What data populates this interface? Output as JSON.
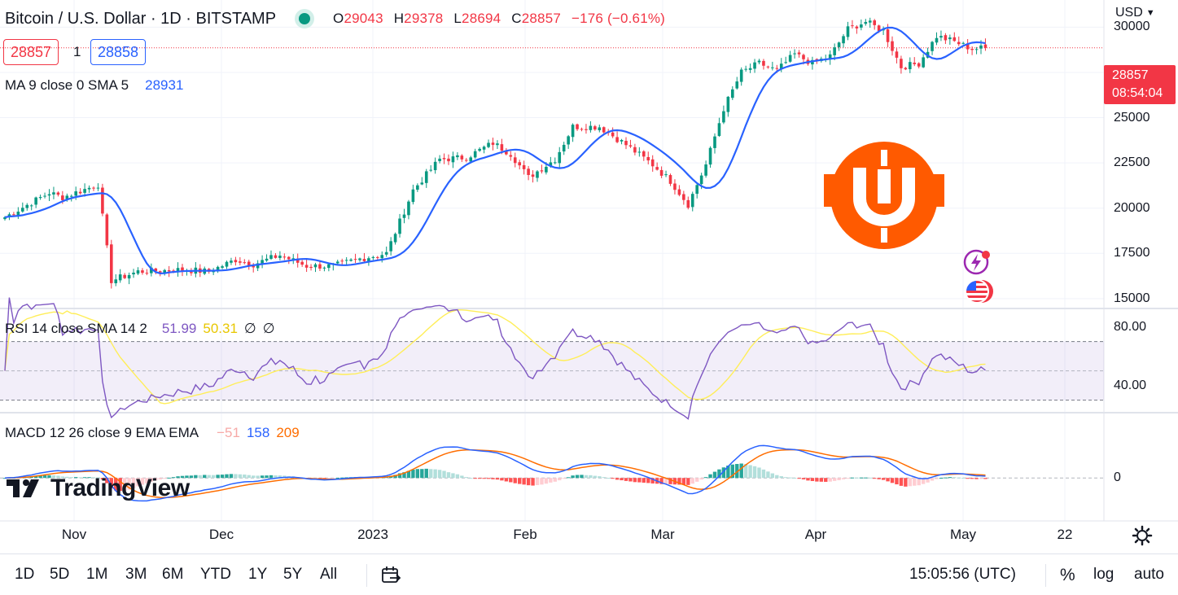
{
  "header": {
    "symbol_title": "Bitcoin / U.S. Dollar · 1D · BITSTAMP",
    "ohlc": {
      "o_label": "O",
      "o_value": "29043",
      "h_label": "H",
      "h_value": "29378",
      "l_label": "L",
      "l_value": "28694",
      "c_label": "C",
      "c_value": "28857",
      "change": "−176 (−0.61%)"
    },
    "sell_price": "28857",
    "spread": "1",
    "buy_price": "28858",
    "currency_selector": "USD"
  },
  "legends": {
    "ma": {
      "label": "MA 9 close 0 SMA 5",
      "value": "28931"
    },
    "rsi": {
      "label": "RSI 14 close SMA 14 2",
      "value1": "51.99",
      "value2": "50.31",
      "value3": "∅",
      "value4": "∅"
    },
    "macd": {
      "label": "MACD 12 26 close 9 EMA EMA",
      "hist": "−51",
      "macd": "158",
      "signal": "209"
    }
  },
  "last_price_tag": {
    "price": "28857",
    "countdown": "08:54:04"
  },
  "watermark": "TradingView",
  "price_axis": [
    "30000",
    "25000",
    "22500",
    "20000",
    "17500",
    "15000"
  ],
  "rsi_axis": [
    "80.00",
    "40.00"
  ],
  "macd_axis": [
    "0"
  ],
  "time_axis": [
    "Nov",
    "Dec",
    "2023",
    "Feb",
    "Mar",
    "Apr",
    "May",
    "22"
  ],
  "toolbar": {
    "ranges": [
      "1D",
      "5D",
      "1M",
      "3M",
      "6M",
      "YTD",
      "1Y",
      "5Y",
      "All"
    ],
    "clock": "15:05:56 (UTC)",
    "percent": "%",
    "log": "log",
    "auto": "auto"
  },
  "colors": {
    "up": "#089981",
    "down": "#f23645",
    "ma": "#2962ff",
    "rsi": "#7e57c2",
    "rsi_sma": "#ffee58",
    "macd": "#2962ff",
    "signal": "#ff6d00",
    "logo_orange": "#ff5a00"
  },
  "icons": [
    "lightning-event-icon",
    "us-flag-icon",
    "settings-gear-icon",
    "date-range-icon"
  ],
  "chart_data": {
    "type": "candlestick",
    "price_ylim": [
      14500,
      31500
    ],
    "rsi_ylim": [
      22,
      92
    ],
    "macd_ylim": [
      -2000,
      3000
    ],
    "pivots": [
      [
        0,
        19500
      ],
      [
        10,
        20850
      ],
      [
        13,
        20600
      ],
      [
        21,
        21300
      ],
      [
        24,
        16000
      ],
      [
        30,
        16500
      ],
      [
        40,
        16600
      ],
      [
        46,
        16500
      ],
      [
        52,
        17150
      ],
      [
        56,
        16900
      ],
      [
        62,
        17400
      ],
      [
        68,
        16800
      ],
      [
        74,
        16800
      ],
      [
        80,
        17200
      ],
      [
        86,
        17500
      ],
      [
        92,
        21000
      ],
      [
        98,
        22700
      ],
      [
        104,
        22800
      ],
      [
        110,
        23600
      ],
      [
        114,
        23000
      ],
      [
        118,
        21700
      ],
      [
        124,
        22700
      ],
      [
        128,
        24500
      ],
      [
        134,
        24500
      ],
      [
        140,
        23500
      ],
      [
        146,
        22400
      ],
      [
        150,
        21500
      ],
      [
        154,
        20200
      ],
      [
        158,
        22400
      ],
      [
        162,
        25500
      ],
      [
        166,
        27500
      ],
      [
        170,
        28000
      ],
      [
        174,
        27600
      ],
      [
        178,
        28500
      ],
      [
        182,
        28000
      ],
      [
        186,
        28400
      ],
      [
        190,
        29900
      ],
      [
        194,
        30300
      ],
      [
        198,
        29800
      ],
      [
        202,
        27800
      ],
      [
        206,
        28000
      ],
      [
        210,
        29500
      ],
      [
        214,
        29200
      ],
      [
        218,
        28800
      ],
      [
        221,
        28857
      ]
    ],
    "ma_period": 9,
    "macd_params": [
      12,
      26,
      9
    ],
    "rsi_period": 14
  }
}
